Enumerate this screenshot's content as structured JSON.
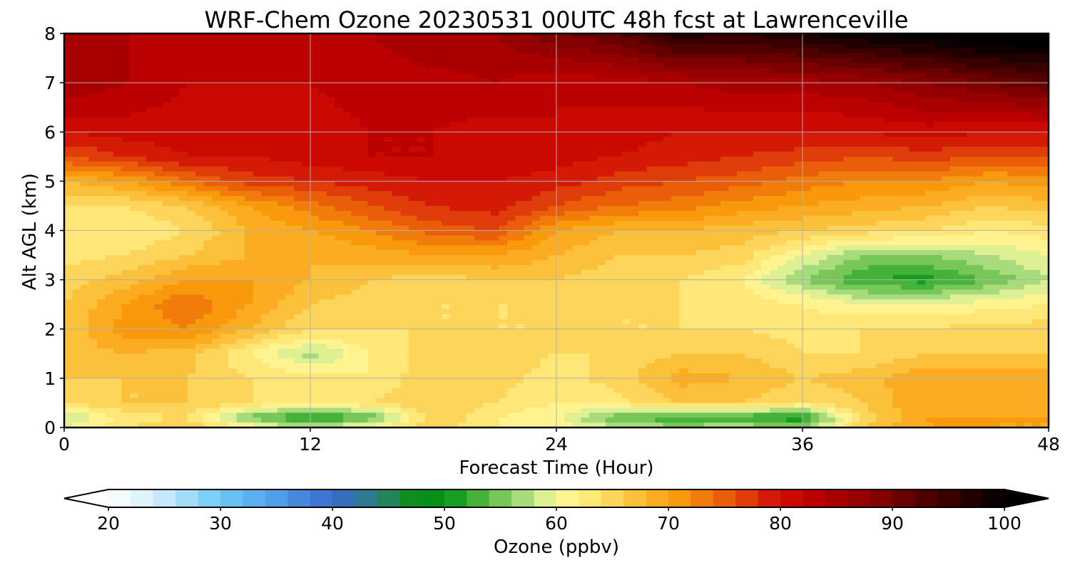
{
  "chart_data": {
    "type": "heatmap",
    "title": "WRF-Chem Ozone  20230531 00UTC 48h fcst at Lawrenceville",
    "xlabel": "Forecast Time (Hour)",
    "ylabel": "Alt AGL (km)",
    "xlim": [
      0,
      48
    ],
    "ylim": [
      0,
      8
    ],
    "xticks": [
      0,
      12,
      24,
      36,
      48
    ],
    "yticks": [
      0,
      1,
      2,
      3,
      4,
      5,
      6,
      7,
      8
    ],
    "grid": true,
    "x": [
      0,
      3,
      6,
      9,
      12,
      15,
      18,
      21,
      24,
      27,
      30,
      33,
      36,
      39,
      42,
      45,
      48
    ],
    "y": [
      0,
      0.2,
      0.5,
      1.0,
      1.5,
      2.0,
      2.5,
      3.0,
      3.5,
      4.0,
      4.5,
      5.0,
      5.5,
      6.0,
      7.0,
      8.0
    ],
    "z": [
      [
        60,
        64,
        66,
        62,
        58,
        62,
        65,
        62,
        62,
        58,
        57,
        58,
        56,
        66,
        70,
        70,
        70
      ],
      [
        57,
        63,
        64,
        55,
        50,
        54,
        66,
        62,
        60,
        54,
        52,
        52,
        50,
        65,
        70,
        70,
        70
      ],
      [
        64,
        66,
        66,
        64,
        62,
        64,
        66,
        64,
        62,
        63,
        66,
        66,
        64,
        66,
        70,
        69,
        70
      ],
      [
        66,
        66,
        66,
        64,
        63,
        62,
        66,
        65,
        63,
        65,
        69,
        68,
        66,
        67,
        70,
        69,
        69
      ],
      [
        67,
        68,
        67,
        62,
        57,
        62,
        65,
        65,
        64,
        64,
        66,
        66,
        64,
        64,
        66,
        66,
        66
      ],
      [
        66,
        71,
        72,
        68,
        64,
        64,
        64,
        64,
        64,
        64,
        64,
        64,
        63,
        64,
        64,
        65,
        65
      ],
      [
        66,
        70,
        74,
        70,
        66,
        65,
        64,
        64,
        64,
        64,
        64,
        63,
        62,
        60,
        60,
        61,
        62
      ],
      [
        65,
        67,
        70,
        70,
        68,
        66,
        65,
        66,
        66,
        65,
        64,
        62,
        56,
        52,
        51,
        54,
        58
      ],
      [
        63,
        64,
        66,
        68,
        68,
        69,
        70,
        70,
        68,
        66,
        66,
        65,
        60,
        56,
        56,
        58,
        60
      ],
      [
        62,
        62,
        64,
        68,
        70,
        72,
        75,
        76,
        70,
        68,
        68,
        67,
        66,
        65,
        64,
        62,
        63
      ],
      [
        64,
        64,
        66,
        70,
        73,
        76,
        78,
        79,
        76,
        74,
        73,
        71,
        70,
        69,
        68,
        66,
        67
      ],
      [
        68,
        70,
        74,
        77,
        78,
        79,
        80,
        80,
        79,
        77,
        76,
        75,
        73,
        72,
        72,
        70,
        71
      ],
      [
        76,
        78,
        80,
        80,
        81,
        82,
        82,
        82,
        81,
        80,
        79,
        78,
        77,
        76,
        77,
        76,
        76
      ],
      [
        80,
        81,
        81,
        81,
        81,
        82,
        82,
        81,
        82,
        81,
        80,
        80,
        80,
        80,
        81,
        80,
        80
      ],
      [
        86,
        84,
        82,
        82,
        82,
        83,
        83,
        84,
        82,
        83,
        84,
        85,
        85,
        86,
        88,
        90,
        92
      ],
      [
        85,
        84,
        83,
        84,
        84,
        84,
        86,
        86,
        90,
        92,
        97,
        96,
        98,
        100,
        101,
        103,
        103
      ]
    ],
    "colorbar": {
      "label": "Ozone  (ppbv)",
      "min": 20,
      "max": 100,
      "step": 2,
      "extend": "both",
      "ticks": [
        20,
        30,
        40,
        50,
        60,
        70,
        80,
        90,
        100
      ],
      "color_stops": [
        [
          20,
          "#ffffff"
        ],
        [
          24,
          "#d6effc"
        ],
        [
          30,
          "#6fc9f5"
        ],
        [
          35,
          "#4f9fe8"
        ],
        [
          40,
          "#3a69cc"
        ],
        [
          44,
          "#2a8080"
        ],
        [
          47,
          "#0e8c1e"
        ],
        [
          50,
          "#009214"
        ],
        [
          54,
          "#5ebd46"
        ],
        [
          58,
          "#bfe58c"
        ],
        [
          60,
          "#fffa9c"
        ],
        [
          64,
          "#fde06a"
        ],
        [
          68,
          "#fdb52a"
        ],
        [
          71,
          "#f89a0c"
        ],
        [
          75,
          "#ea5e0a"
        ],
        [
          79,
          "#d21a05"
        ],
        [
          82,
          "#c40000"
        ],
        [
          88,
          "#8c0000"
        ],
        [
          94,
          "#450000"
        ],
        [
          100,
          "#000000"
        ]
      ]
    }
  }
}
